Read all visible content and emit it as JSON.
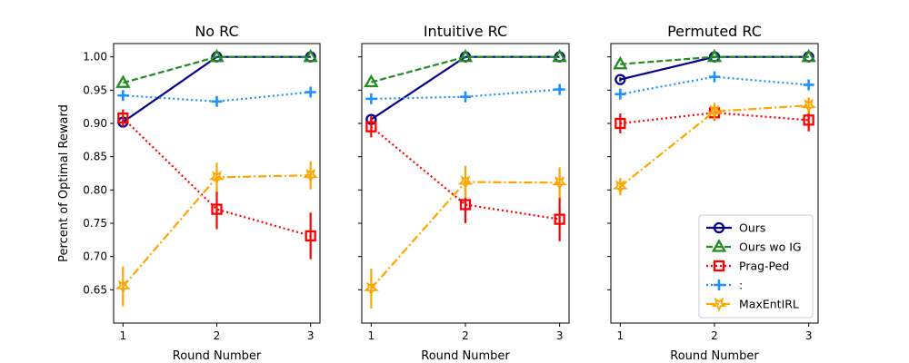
{
  "figure": {
    "ylabel": "Percent of Optimal Reward"
  },
  "chart_data": [
    {
      "type": "line",
      "title": "No RC",
      "xlabel": "Round Number",
      "ylabel": "Percent of Optimal Reward",
      "x": [
        1,
        2,
        3
      ],
      "xticks": [
        "1",
        "2",
        "3"
      ],
      "ylim": [
        0.6,
        1.02
      ],
      "yticks": [
        "0.65",
        "0.70",
        "0.75",
        "0.80",
        "0.85",
        "0.90",
        "0.95",
        "1.00"
      ],
      "series": [
        {
          "name": "Ours",
          "values": [
            0.902,
            1.0,
            1.0
          ],
          "errors": [
            0.003,
            0.0,
            0.0
          ]
        },
        {
          "name": "Ours wo IG",
          "values": [
            0.961,
            1.0,
            1.0
          ],
          "errors": [
            0.0,
            0.0,
            0.0
          ]
        },
        {
          "name": "Prag-Ped",
          "values": [
            0.908,
            0.771,
            0.731
          ],
          "errors": [
            0.013,
            0.03,
            0.035
          ]
        },
        {
          "name": ":",
          "values": [
            0.942,
            0.933,
            0.947
          ],
          "errors": [
            0.0,
            0.0,
            0.0
          ]
        },
        {
          "name": "MaxEntIRL",
          "values": [
            0.655,
            0.819,
            0.822
          ],
          "errors": [
            0.03,
            0.022,
            0.021
          ]
        }
      ]
    },
    {
      "type": "line",
      "title": "Intuitive RC",
      "xlabel": "Round Number",
      "x": [
        1,
        2,
        3
      ],
      "xticks": [
        "1",
        "2",
        "3"
      ],
      "ylim": [
        0.6,
        1.02
      ],
      "series": [
        {
          "name": "Ours",
          "values": [
            0.906,
            1.0,
            1.0
          ],
          "errors": [
            0.003,
            0.0,
            0.0
          ]
        },
        {
          "name": "Ours wo IG",
          "values": [
            0.962,
            1.0,
            1.0
          ],
          "errors": [
            0.0,
            0.0,
            0.0
          ]
        },
        {
          "name": "Prag-Ped",
          "values": [
            0.895,
            0.778,
            0.756
          ],
          "errors": [
            0.016,
            0.028,
            0.033
          ]
        },
        {
          "name": ":",
          "values": [
            0.937,
            0.94,
            0.951
          ],
          "errors": [
            0.0,
            0.0,
            0.0
          ]
        },
        {
          "name": "MaxEntIRL",
          "values": [
            0.652,
            0.812,
            0.811
          ],
          "errors": [
            0.03,
            0.024,
            0.023
          ]
        }
      ]
    },
    {
      "type": "line",
      "title": "Permuted RC",
      "xlabel": "Round Number",
      "x": [
        1,
        2,
        3
      ],
      "xticks": [
        "1",
        "2",
        "3"
      ],
      "ylim": [
        0.6,
        1.02
      ],
      "series": [
        {
          "name": "Ours",
          "values": [
            0.966,
            1.0,
            1.0
          ],
          "errors": [
            0.003,
            0.0,
            0.0
          ]
        },
        {
          "name": "Ours wo IG",
          "values": [
            0.989,
            1.0,
            1.0
          ],
          "errors": [
            0.0,
            0.0,
            0.0
          ]
        },
        {
          "name": "Prag-Ped",
          "values": [
            0.9,
            0.916,
            0.905
          ],
          "errors": [
            0.015,
            0.012,
            0.017
          ]
        },
        {
          "name": ":",
          "values": [
            0.944,
            0.97,
            0.958
          ],
          "errors": [
            0.0,
            0.0,
            0.0
          ]
        },
        {
          "name": "MaxEntIRL",
          "values": [
            0.805,
            0.918,
            0.927
          ],
          "errors": [
            0.013,
            0.013,
            0.012
          ]
        }
      ],
      "legend": {
        "placement": "lower-right",
        "entries": [
          "Ours",
          "Ours wo IG",
          "Prag-Ped",
          ":",
          "MaxEntIRL"
        ]
      }
    }
  ],
  "styles": {
    "Ours": {
      "color": "#00008b",
      "dash": "solid",
      "marker": "circle"
    },
    "Ours wo IG": {
      "color": "#228b22",
      "dash": "dashed",
      "marker": "triangle"
    },
    "Prag-Ped": {
      "color": "#ff0000",
      "dash": "dotted",
      "marker": "square"
    },
    ":": {
      "color": "#1e90ff",
      "dash": "dotted",
      "marker": "plus"
    },
    "MaxEntIRL": {
      "color": "#ffa500",
      "dash": "dashdot",
      "marker": "star"
    }
  }
}
